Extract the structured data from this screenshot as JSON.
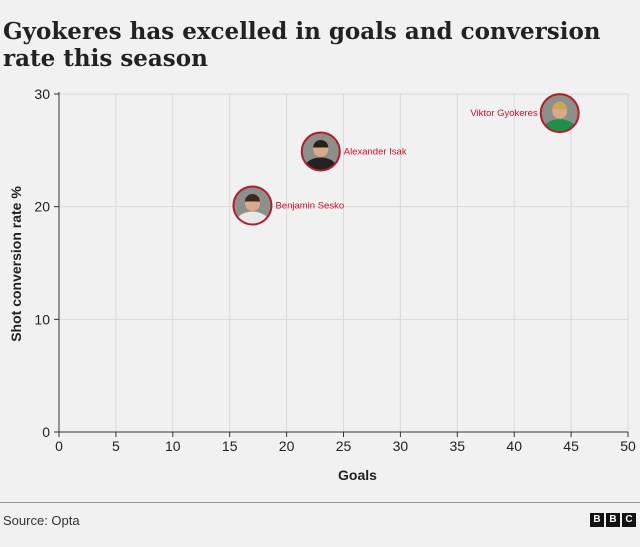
{
  "title": "Gyokeres has excelled in goals and conversion rate this season",
  "source": "Source: Opta",
  "logo": [
    "B",
    "B",
    "C"
  ],
  "colors": {
    "background": "#f1f1f1",
    "grid": "#d9d9d9",
    "axis": "#333333",
    "label_red": "#c8102e",
    "photo_ring": "#b31d2e"
  },
  "chart_data": {
    "type": "scatter",
    "xlabel": "Goals",
    "ylabel": "Shot conversion rate %",
    "xlim": [
      0,
      50
    ],
    "ylim": [
      0,
      30
    ],
    "xticks": [
      "0",
      "5",
      "10",
      "15",
      "20",
      "25",
      "30",
      "35",
      "40",
      "45",
      "50"
    ],
    "yticks": [
      "0",
      "10",
      "20",
      "30"
    ],
    "grid": true,
    "points": [
      {
        "label": "Viktor Gyokeres",
        "x": 44,
        "y": 28.3,
        "label_side": "left",
        "kit": "#1f8f4a",
        "hair": "#caa55a"
      },
      {
        "label": "Alexander Isak",
        "x": 23,
        "y": 24.9,
        "label_side": "right",
        "kit": "#222222",
        "hair": "#2a2018"
      },
      {
        "label": "Benjamin Sesko",
        "x": 17,
        "y": 20.1,
        "label_side": "right",
        "kit": "#e8e8e8",
        "hair": "#3a2a1e"
      }
    ]
  }
}
